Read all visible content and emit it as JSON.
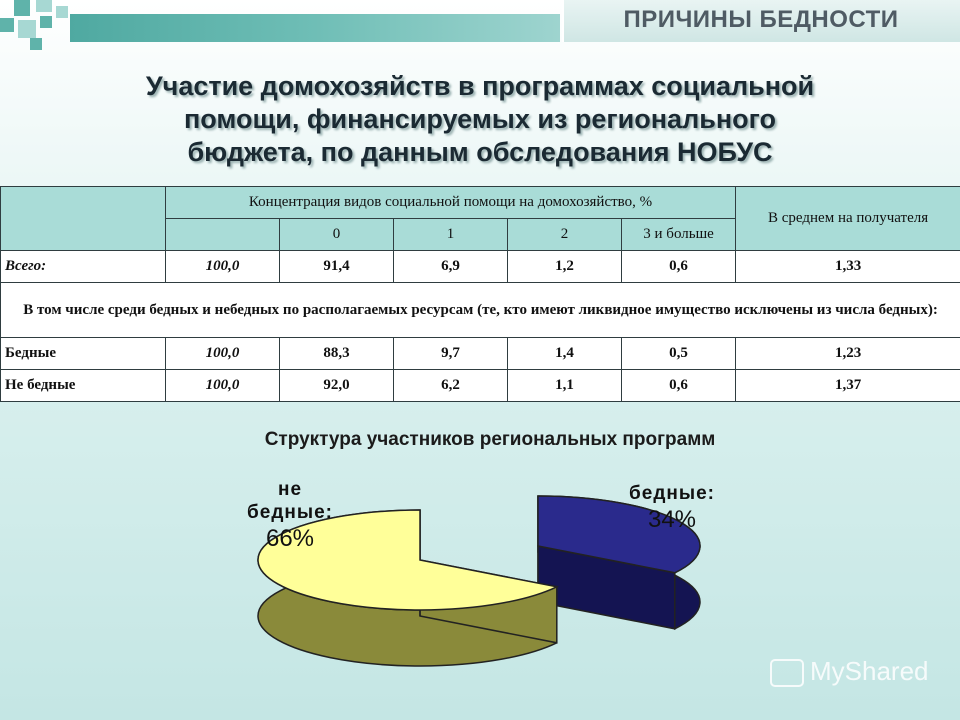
{
  "header": {
    "section_title": "ПРИЧИНЫ БЕДНОСТИ"
  },
  "heading": {
    "line1": "Участие домохозяйств в программах социальной",
    "line2": "помощи, финансируемых из регионального",
    "line3": "бюджета, по данным обследования НОБУС"
  },
  "table": {
    "header_concentration": "Концентрация видов социальной помощи на домохозяйство, %",
    "header_average": "В среднем на получателя",
    "subheaders": [
      "0",
      "1",
      "2",
      "3 и больше"
    ],
    "rows_top": [
      {
        "label": "Всего:",
        "total": "100,0",
        "values": [
          "91,4",
          "6,9",
          "1,2",
          "0,6"
        ],
        "avg": "1,33"
      }
    ],
    "note": "В том числе среди бедных и небедных по располагаемых ресурсам (те, кто имеют ликвидное имущество исключены из числа бедных):",
    "rows_bottom": [
      {
        "label": "Бедные",
        "total": "100,0",
        "values": [
          "88,3",
          "9,7",
          "1,4",
          "0,5"
        ],
        "avg": "1,23"
      },
      {
        "label": "Не бедные",
        "total": "100,0",
        "values": [
          "92,0",
          "6,2",
          "1,1",
          "0,6"
        ],
        "avg": "1,37"
      }
    ]
  },
  "chart_data": {
    "type": "pie",
    "title": "Структура участников региональных программ",
    "slices": [
      {
        "label_line1": "бедные:",
        "label_line2": "",
        "value": 34,
        "pct_label": "34%",
        "color": "#2a2a8c",
        "side": "#141452"
      },
      {
        "label_line1": "не",
        "label_line2": "бедные:",
        "value": 66,
        "pct_label": "66%",
        "color": "#ffff99",
        "side": "#8a8a3a"
      }
    ]
  },
  "watermark": "MyShared"
}
